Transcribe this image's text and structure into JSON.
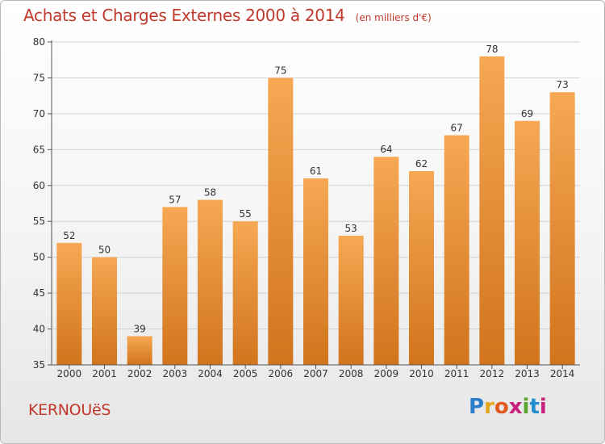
{
  "title": "Achats et Charges Externes 2000 à 2014",
  "unit_note": "(en milliers d'€)",
  "commune": "KERNOUëS",
  "logo": {
    "letters": [
      "P",
      "r",
      "o",
      "x",
      "i",
      "t",
      "i"
    ],
    "colors": [
      "#2a7ec9",
      "#e5a51c",
      "#e35a1e",
      "#c8217b",
      "#59a52c",
      "#1f8fcf",
      "#c8217b"
    ]
  },
  "colors": {
    "bar_top": "#f6a853",
    "bar_bottom": "#d1741d",
    "grid": "#d2d2d2",
    "axis": "#555555"
  },
  "chart_data": {
    "type": "bar",
    "categories": [
      "2000",
      "2001",
      "2002",
      "2003",
      "2004",
      "2005",
      "2006",
      "2007",
      "2008",
      "2009",
      "2010",
      "2011",
      "2012",
      "2013",
      "2014"
    ],
    "values": [
      52,
      50,
      39,
      57,
      58,
      55,
      75,
      61,
      53,
      64,
      62,
      67,
      78,
      69,
      73
    ],
    "ylim": [
      35,
      80
    ],
    "yticks": [
      35,
      40,
      45,
      50,
      55,
      60,
      65,
      70,
      75,
      80
    ],
    "grid": true
  }
}
